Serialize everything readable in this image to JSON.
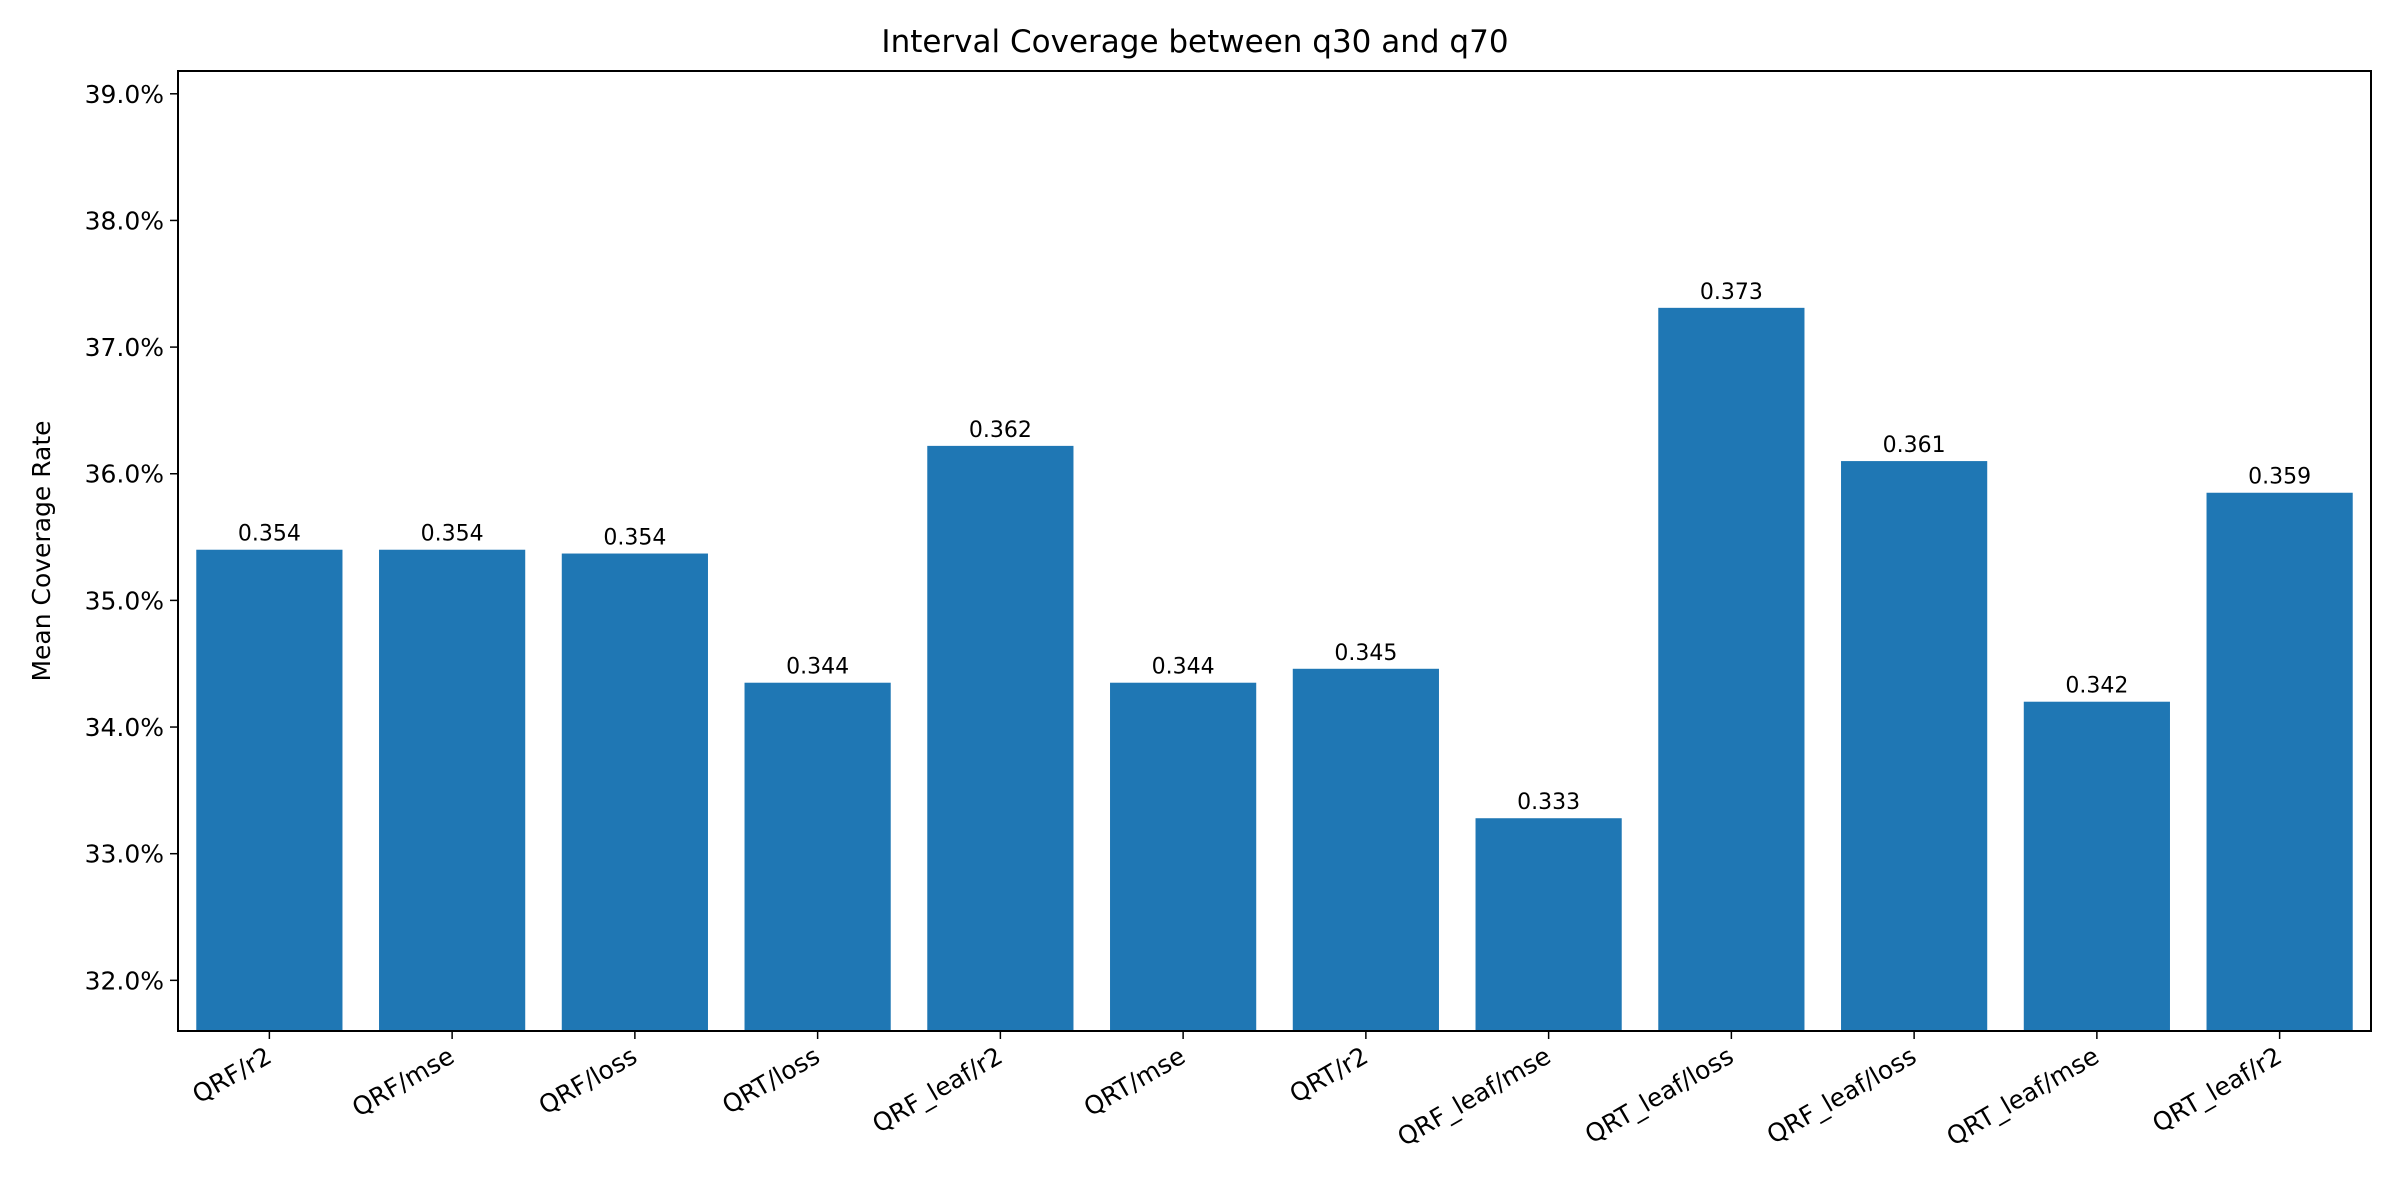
{
  "chart_data": {
    "type": "bar",
    "title": "Interval Coverage between q30 and q70",
    "xlabel": "",
    "ylabel": "Mean Coverage Rate",
    "categories": [
      "QRF/r2",
      "QRF/mse",
      "QRF/loss",
      "QRT/loss",
      "QRF_leaf/r2",
      "QRT/mse",
      "QRT/r2",
      "QRF_leaf/mse",
      "QRT_leaf/loss",
      "QRF_leaf/loss",
      "QRT_leaf/mse",
      "QRT_leaf/r2"
    ],
    "values": [
      0.354,
      0.354,
      0.3537,
      0.3435,
      0.3622,
      0.3435,
      0.3446,
      0.3328,
      0.3731,
      0.361,
      0.342,
      0.3585
    ],
    "data_labels": [
      "0.354",
      "0.354",
      "0.354",
      "0.344",
      "0.362",
      "0.344",
      "0.345",
      "0.333",
      "0.373",
      "0.361",
      "0.342",
      "0.359"
    ],
    "ylim": [
      0.316,
      0.3918
    ],
    "yticks": [
      0.32,
      0.33,
      0.34,
      0.35,
      0.36,
      0.37,
      0.38,
      0.39
    ],
    "ytick_labels": [
      "32.0%",
      "33.0%",
      "34.0%",
      "35.0%",
      "36.0%",
      "37.0%",
      "38.0%",
      "39.0%"
    ],
    "bar_color": "#1f77b4",
    "grid": false,
    "legend": "none"
  }
}
